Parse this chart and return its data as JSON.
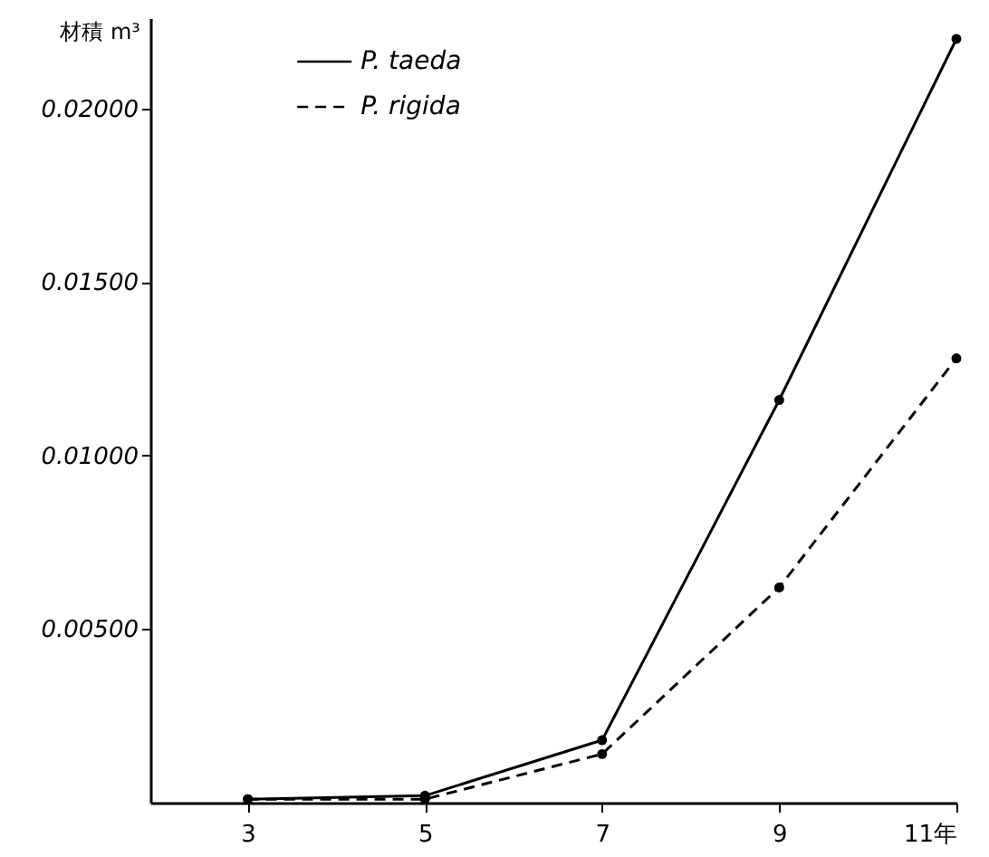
{
  "chart_data": {
    "type": "line",
    "ylabel": "材積 m³",
    "x": [
      3,
      5,
      7,
      9,
      11
    ],
    "series": [
      {
        "name": "P. taeda",
        "color": "#000000",
        "line_style": "solid",
        "values": [
          0.0001,
          0.0002,
          0.0018,
          0.0116,
          0.022
        ]
      },
      {
        "name": "P. rigida",
        "color": "#000000",
        "line_style": "dashed",
        "values": [
          0.0001,
          0.0001,
          0.0014,
          0.0062,
          0.0128
        ]
      }
    ],
    "xlim": [
      1.9,
      11
    ],
    "xticks": [
      3,
      5,
      7,
      9,
      {
        "value": 11,
        "label": "11年"
      }
    ],
    "ylim": [
      0,
      0.0226
    ],
    "yticks": [
      {
        "value": 0.005,
        "label": "0.00500"
      },
      {
        "value": 0.01,
        "label": "0.01000"
      },
      {
        "value": 0.015,
        "label": "0.01500"
      },
      {
        "value": 0.02,
        "label": "0.02000"
      }
    ],
    "grid": false,
    "legend": "top",
    "marker": "circle"
  }
}
